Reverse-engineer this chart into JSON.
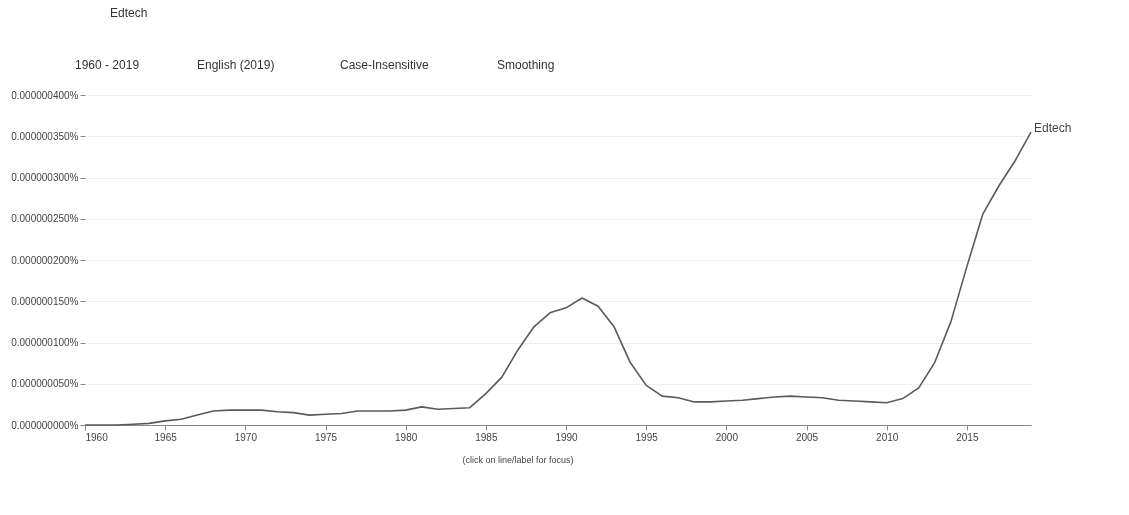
{
  "chart_data": {
    "type": "line",
    "annotations": [
      "Edtech",
      "1960 - 2019",
      "English (2019)",
      "Case-Insensitive",
      "Smoothing",
      "(click on line/label for focus)"
    ],
    "x": [
      1960,
      1961,
      1962,
      1963,
      1964,
      1965,
      1966,
      1967,
      1968,
      1969,
      1970,
      1971,
      1972,
      1973,
      1974,
      1975,
      1976,
      1977,
      1978,
      1979,
      1980,
      1981,
      1982,
      1983,
      1984,
      1985,
      1986,
      1987,
      1988,
      1989,
      1990,
      1991,
      1992,
      1993,
      1994,
      1995,
      1996,
      1997,
      1998,
      1999,
      2000,
      2001,
      2002,
      2003,
      2004,
      2005,
      2006,
      2007,
      2008,
      2009,
      2010,
      2011,
      2012,
      2013,
      2014,
      2015,
      2016,
      2017,
      2018,
      2019
    ],
    "series": [
      {
        "name": "Edtech",
        "color": "#5a5a5a",
        "values": [
          0,
          0,
          0,
          1e-09,
          2e-09,
          5e-09,
          7e-09,
          1.2e-08,
          1.7e-08,
          1.8e-08,
          1.8e-08,
          1.8e-08,
          1.6e-08,
          1.5e-08,
          1.2e-08,
          1.3e-08,
          1.4e-08,
          1.7e-08,
          1.7e-08,
          1.7e-08,
          1.8e-08,
          2.2e-08,
          1.9e-08,
          2e-08,
          2.1e-08,
          3.8e-08,
          5.8e-08,
          9.1e-08,
          1.19e-07,
          1.36e-07,
          1.42e-07,
          1.54e-07,
          1.44e-07,
          1.19e-07,
          7.6e-08,
          4.8e-08,
          3.5e-08,
          3.3e-08,
          2.8e-08,
          2.8e-08,
          2.9e-08,
          3e-08,
          3.2e-08,
          3.4e-08,
          3.5e-08,
          3.4e-08,
          3.3e-08,
          3e-08,
          2.9e-08,
          2.8e-08,
          2.7e-08,
          3.2e-08,
          4.5e-08,
          7.6e-08,
          1.25e-07,
          1.92e-07,
          2.56e-07,
          2.9e-07,
          3.2e-07,
          3.55e-07
        ]
      }
    ],
    "xlim": [
      1960,
      2019
    ],
    "xticks": [
      1960,
      1965,
      1970,
      1975,
      1980,
      1985,
      1990,
      1995,
      2000,
      2005,
      2010,
      2015
    ],
    "ylim": [
      0,
      4e-07
    ],
    "yticks": [
      {
        "value": 0,
        "label": "0.000000000%"
      },
      {
        "value": 5e-08,
        "label": "0.000000050%"
      },
      {
        "value": 1e-07,
        "label": "0.000000100%"
      },
      {
        "value": 1.5e-07,
        "label": "0.000000150%"
      },
      {
        "value": 2e-07,
        "label": "0.000000200%"
      },
      {
        "value": 2.5e-07,
        "label": "0.000000250%"
      },
      {
        "value": 3e-07,
        "label": "0.000000300%"
      },
      {
        "value": 3.5e-07,
        "label": "0.000000350%"
      },
      {
        "value": 4e-07,
        "label": "0.000000400%"
      }
    ],
    "grid": "y",
    "legend": false,
    "marker": "none",
    "line_style": "solid"
  }
}
